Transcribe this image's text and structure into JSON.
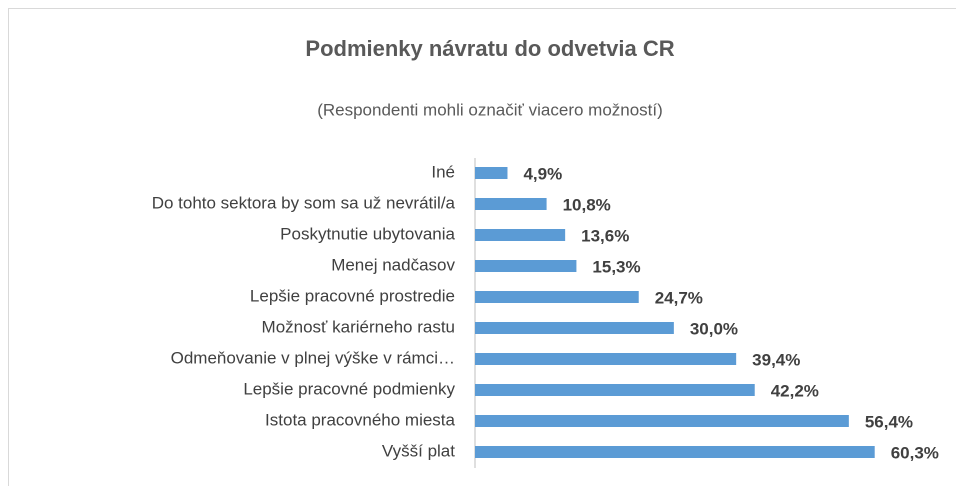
{
  "chart_data": {
    "type": "bar",
    "orientation": "horizontal",
    "title": "Podmienky návratu do odvetvia CR",
    "subtitle": "(Respondenti mohli označiť viacero možností)",
    "categories": [
      "Iné",
      "Do tohto sektora by som sa už nevrátil/a",
      "Poskytnutie ubytovania",
      "Menej nadčasov",
      "Lepšie pracovné prostredie",
      "Možnosť kariérneho rastu",
      "Odmeňovanie v plnej výške v rámci…",
      "Lepšie pracovné podmienky",
      "Istota pracovného miesta",
      "Vyšší plat"
    ],
    "values": [
      4.9,
      10.8,
      13.6,
      15.3,
      24.7,
      30.0,
      39.4,
      42.2,
      56.4,
      60.3
    ],
    "value_labels": [
      "4,9%",
      "10,8%",
      "13,6%",
      "15,3%",
      "24,7%",
      "30,0%",
      "39,4%",
      "42,2%",
      "56,4%",
      "60,3%"
    ],
    "color": "#5b9bd5",
    "xlim": [
      0,
      70
    ]
  }
}
